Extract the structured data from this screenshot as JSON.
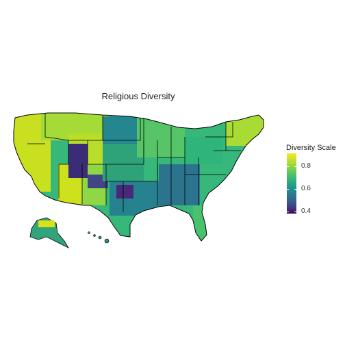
{
  "title": "Religious Diversity",
  "legend": {
    "title": "Diversity Scale",
    "ticks": [
      "0.8",
      "0.6",
      "0.4"
    ],
    "scale": {
      "min": 0.4,
      "max": 0.95
    },
    "colors": [
      "#fde725",
      "#a0da39",
      "#4ac16d",
      "#1fa187",
      "#277f8e",
      "#365c8d",
      "#46327e",
      "#440154"
    ]
  },
  "map": {
    "region": "contiguous-us-alaska-hawaii",
    "palette": "viridis",
    "border_color": "#000000",
    "regional_levels": {
      "northeast": 0.82,
      "southeast": 0.62,
      "midwest": 0.75,
      "great_plains": 0.7,
      "utah": 0.42,
      "west_coast": 0.88,
      "texas": 0.65
    }
  }
}
